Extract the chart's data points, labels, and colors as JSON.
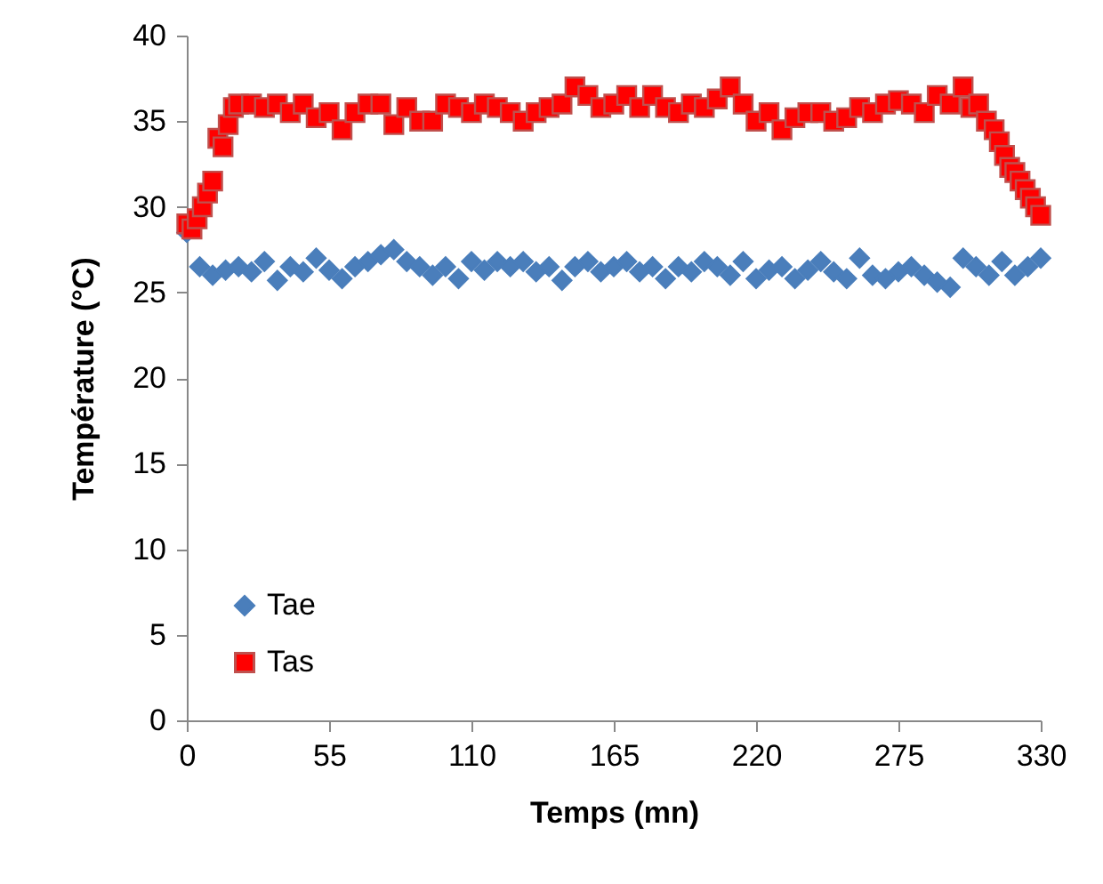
{
  "chart_data": {
    "type": "scatter",
    "xlabel": "Temps (mn)",
    "ylabel": "Température  (°C)",
    "xlim": [
      0,
      330
    ],
    "xticks": [
      0,
      55,
      110,
      165,
      220,
      275,
      330
    ],
    "ylim": [
      0,
      40
    ],
    "yticks": [
      0,
      5,
      10,
      15,
      20,
      25,
      30,
      35,
      40
    ],
    "grid": false,
    "legend": "bottom left",
    "series": [
      {
        "name": "Tae",
        "color": "#4a7ebb",
        "marker": "diamond",
        "x": [
          0,
          5,
          10,
          15,
          20,
          25,
          30,
          35,
          40,
          45,
          50,
          55,
          60,
          65,
          70,
          75,
          80,
          85,
          90,
          95,
          100,
          105,
          110,
          115,
          120,
          125,
          130,
          135,
          140,
          145,
          150,
          155,
          160,
          165,
          170,
          175,
          180,
          185,
          190,
          195,
          200,
          205,
          210,
          215,
          220,
          225,
          230,
          235,
          240,
          245,
          250,
          255,
          260,
          265,
          270,
          275,
          280,
          285,
          290,
          295,
          300,
          305,
          310,
          315,
          320,
          325,
          330
        ],
        "values": [
          28.5,
          26.5,
          26,
          26.3,
          26.5,
          26.2,
          26.8,
          25.7,
          26.5,
          26.2,
          27,
          26.3,
          25.8,
          26.5,
          26.8,
          27.2,
          27.5,
          26.8,
          26.5,
          26,
          26.5,
          25.8,
          26.8,
          26.3,
          26.8,
          26.5,
          26.8,
          26.2,
          26.5,
          25.7,
          26.5,
          26.8,
          26.2,
          26.5,
          26.8,
          26.2,
          26.5,
          25.8,
          26.5,
          26.2,
          26.8,
          26.5,
          26,
          26.8,
          25.8,
          26.3,
          26.5,
          25.8,
          26.3,
          26.8,
          26.2,
          25.8,
          27,
          26,
          25.8,
          26.2,
          26.5,
          26,
          25.6,
          25.3,
          27,
          26.5,
          26,
          26.8,
          26,
          26.5,
          27
        ]
      },
      {
        "name": "Tas",
        "color": "#ff0000",
        "marker": "square",
        "x": [
          0,
          2,
          4,
          6,
          8,
          10,
          12,
          14,
          16,
          18,
          20,
          25,
          30,
          35,
          40,
          45,
          50,
          55,
          60,
          65,
          70,
          75,
          80,
          85,
          90,
          95,
          100,
          105,
          110,
          115,
          120,
          125,
          130,
          135,
          140,
          145,
          150,
          155,
          160,
          165,
          170,
          175,
          180,
          185,
          190,
          195,
          200,
          205,
          210,
          215,
          220,
          225,
          230,
          235,
          240,
          245,
          250,
          255,
          260,
          265,
          270,
          275,
          280,
          285,
          290,
          295,
          300,
          303,
          306,
          309,
          312,
          314,
          316,
          318,
          320,
          322,
          324,
          326,
          328,
          330
        ],
        "values": [
          29,
          28.7,
          29.3,
          30,
          30.8,
          31.5,
          34,
          33.5,
          34.8,
          35.8,
          36,
          36,
          35.8,
          36,
          35.5,
          36,
          35.2,
          35.5,
          34.5,
          35.5,
          36,
          36,
          34.8,
          35.8,
          35,
          35,
          36,
          35.8,
          35.5,
          36,
          35.8,
          35.5,
          35,
          35.5,
          35.8,
          36,
          37,
          36.5,
          35.8,
          36,
          36.5,
          35.8,
          36.5,
          35.8,
          35.5,
          36,
          35.8,
          36.3,
          37,
          36,
          35,
          35.5,
          34.5,
          35.2,
          35.5,
          35.5,
          35,
          35.2,
          35.8,
          35.5,
          36,
          36.2,
          36,
          35.5,
          36.5,
          36,
          37,
          35.8,
          36,
          35,
          34.5,
          33.8,
          33,
          32.3,
          32,
          31.5,
          31,
          30.5,
          30,
          29.5
        ]
      }
    ]
  }
}
